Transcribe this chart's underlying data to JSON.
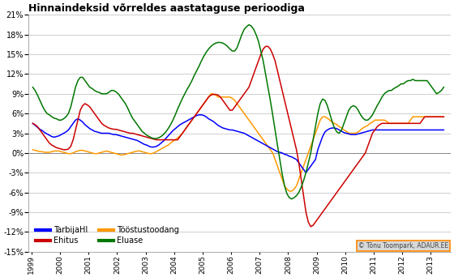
{
  "title": "Hinnaindeksid võrreldes aastataguse perioodiga",
  "ylim": [
    -15,
    21
  ],
  "yticks": [
    -15,
    -12,
    -9,
    -6,
    -3,
    0,
    3,
    6,
    9,
    12,
    15,
    18,
    21
  ],
  "legend_labels": [
    "TarbijaHI",
    "Ehitus",
    "Tööstustoodang",
    "Eluase"
  ],
  "line_colors": [
    "#0000ff",
    "#cc0000",
    "#ff9900",
    "#007700"
  ],
  "copyright_text": "© Tõnu Toompark, ADAUR.EE",
  "background_color": "#ffffff",
  "grid_color": "#bbbbbb",
  "start_year": 1999,
  "end_year": 2013,
  "cpi": [
    4.5,
    4.2,
    3.9,
    3.6,
    3.4,
    3.1,
    2.9,
    2.7,
    2.5,
    2.4,
    2.5,
    2.6,
    2.8,
    3.0,
    3.2,
    3.5,
    4.0,
    4.5,
    5.0,
    5.2,
    5.0,
    4.7,
    4.3,
    4.0,
    3.7,
    3.5,
    3.3,
    3.2,
    3.1,
    3.0,
    3.0,
    3.0,
    3.0,
    2.9,
    2.8,
    2.8,
    2.7,
    2.6,
    2.5,
    2.4,
    2.3,
    2.2,
    2.1,
    2.0,
    1.9,
    1.7,
    1.5,
    1.3,
    1.2,
    1.0,
    0.9,
    0.9,
    1.0,
    1.2,
    1.5,
    1.8,
    2.2,
    2.6,
    3.0,
    3.4,
    3.7,
    4.0,
    4.3,
    4.5,
    4.7,
    4.9,
    5.1,
    5.3,
    5.5,
    5.7,
    5.8,
    5.8,
    5.7,
    5.5,
    5.2,
    5.0,
    4.8,
    4.5,
    4.2,
    4.0,
    3.8,
    3.7,
    3.6,
    3.5,
    3.5,
    3.4,
    3.3,
    3.2,
    3.1,
    3.0,
    2.8,
    2.6,
    2.4,
    2.2,
    2.0,
    1.8,
    1.6,
    1.4,
    1.2,
    1.0,
    0.8,
    0.6,
    0.4,
    0.2,
    0.1,
    0.0,
    -0.2,
    -0.3,
    -0.5,
    -0.6,
    -0.8,
    -1.0,
    -1.5,
    -2.0,
    -2.5,
    -3.0,
    -2.5,
    -2.0,
    -1.5,
    -1.0,
    0.5,
    1.5,
    2.5,
    3.2,
    3.5,
    3.7,
    3.8,
    3.8,
    3.7,
    3.5,
    3.3,
    3.1,
    3.0,
    2.9,
    2.8,
    2.8,
    2.8,
    2.9,
    3.0,
    3.1,
    3.2,
    3.3,
    3.4,
    3.5,
    3.5,
    3.5,
    3.5,
    3.5,
    3.5,
    3.5,
    3.5,
    3.5,
    3.5,
    3.5,
    3.5,
    3.5,
    3.5,
    3.5,
    3.5,
    3.5,
    3.5,
    3.5,
    3.5,
    3.5,
    3.5,
    3.5,
    3.5,
    3.5,
    3.5,
    3.5,
    3.5,
    3.5,
    3.5,
    3.5,
    3.5,
    3.5,
    3.5,
    3.5,
    3.5
  ],
  "ehitus": [
    4.5,
    4.3,
    4.0,
    3.5,
    3.0,
    2.5,
    2.0,
    1.5,
    1.2,
    1.0,
    0.8,
    0.7,
    0.6,
    0.5,
    0.5,
    0.6,
    1.0,
    2.0,
    3.5,
    5.0,
    6.5,
    7.2,
    7.5,
    7.3,
    7.0,
    6.5,
    6.0,
    5.5,
    5.0,
    4.5,
    4.2,
    4.0,
    3.8,
    3.7,
    3.6,
    3.6,
    3.5,
    3.4,
    3.3,
    3.2,
    3.1,
    3.0,
    3.0,
    2.9,
    2.8,
    2.7,
    2.6,
    2.5,
    2.4,
    2.3,
    2.2,
    2.1,
    2.0,
    2.0,
    2.0,
    2.0,
    2.0,
    2.0,
    2.0,
    2.0,
    2.0,
    2.0,
    2.5,
    3.0,
    3.5,
    4.0,
    4.5,
    5.0,
    5.5,
    6.0,
    6.5,
    7.0,
    7.5,
    8.0,
    8.5,
    8.8,
    8.9,
    8.9,
    8.8,
    8.5,
    8.0,
    7.5,
    7.0,
    6.5,
    6.5,
    7.0,
    7.5,
    8.0,
    8.5,
    9.0,
    9.5,
    10.0,
    11.0,
    12.0,
    13.0,
    14.0,
    15.0,
    15.8,
    16.2,
    16.2,
    15.8,
    15.0,
    14.0,
    12.5,
    11.0,
    9.5,
    8.0,
    6.5,
    5.0,
    3.5,
    2.0,
    0.5,
    -1.5,
    -4.0,
    -6.5,
    -9.0,
    -10.5,
    -11.2,
    -11.0,
    -10.5,
    -10.0,
    -9.5,
    -9.0,
    -8.5,
    -8.0,
    -7.5,
    -7.0,
    -6.5,
    -6.0,
    -5.5,
    -5.0,
    -4.5,
    -4.0,
    -3.5,
    -3.0,
    -2.5,
    -2.0,
    -1.5,
    -1.0,
    -0.5,
    0.0,
    1.0,
    2.0,
    3.0,
    3.5,
    4.0,
    4.3,
    4.5,
    4.5,
    4.5,
    4.5,
    4.5,
    4.5,
    4.5,
    4.5,
    4.5,
    4.5,
    4.5,
    4.5,
    4.5,
    4.5,
    4.5,
    4.5,
    4.5,
    5.0,
    5.5,
    5.5,
    5.5,
    5.5,
    5.5,
    5.5,
    5.5,
    5.5,
    5.5,
    5.5,
    5.5,
    5.5,
    5.5,
    6.0
  ],
  "toodang": [
    0.5,
    0.4,
    0.3,
    0.2,
    0.2,
    0.1,
    0.1,
    0.1,
    0.2,
    0.3,
    0.3,
    0.3,
    0.2,
    0.1,
    0.0,
    -0.1,
    -0.1,
    0.0,
    0.2,
    0.3,
    0.4,
    0.4,
    0.3,
    0.2,
    0.1,
    0.0,
    -0.1,
    -0.1,
    0.0,
    0.1,
    0.2,
    0.3,
    0.2,
    0.1,
    0.0,
    -0.1,
    -0.2,
    -0.3,
    -0.3,
    -0.2,
    -0.1,
    0.0,
    0.1,
    0.2,
    0.3,
    0.3,
    0.2,
    0.1,
    0.0,
    -0.1,
    -0.1,
    0.0,
    0.2,
    0.4,
    0.6,
    0.8,
    1.0,
    1.2,
    1.5,
    1.8,
    2.0,
    2.3,
    2.6,
    3.0,
    3.5,
    4.0,
    4.5,
    5.0,
    5.5,
    6.0,
    6.5,
    7.0,
    7.5,
    8.0,
    8.5,
    9.0,
    9.0,
    8.8,
    8.5,
    8.5,
    8.5,
    8.5,
    8.5,
    8.5,
    8.3,
    8.0,
    7.5,
    7.0,
    6.5,
    6.0,
    5.5,
    5.0,
    4.5,
    4.0,
    3.5,
    3.0,
    2.5,
    2.0,
    1.5,
    1.0,
    0.5,
    0.0,
    -1.0,
    -2.0,
    -3.0,
    -4.0,
    -5.0,
    -5.5,
    -5.8,
    -5.8,
    -5.5,
    -5.0,
    -4.0,
    -3.0,
    -2.0,
    -1.0,
    0.0,
    1.0,
    2.0,
    3.0,
    4.0,
    5.0,
    5.5,
    5.5,
    5.3,
    5.0,
    4.7,
    4.5,
    4.3,
    4.0,
    3.8,
    3.5,
    3.3,
    3.0,
    3.0,
    3.0,
    3.0,
    3.2,
    3.5,
    3.8,
    4.0,
    4.2,
    4.5,
    4.7,
    5.0,
    5.0,
    5.0,
    5.0,
    5.0,
    4.8,
    4.5,
    4.5,
    4.5,
    4.5,
    4.5,
    4.5,
    4.5,
    4.5,
    4.5,
    5.0,
    5.5,
    5.5,
    5.5,
    5.5,
    5.5,
    5.5,
    5.5,
    5.5,
    5.5,
    5.5,
    5.5,
    5.5,
    5.5,
    5.5,
    5.5,
    5.5,
    5.5,
    5.5,
    6.0
  ],
  "eluase": [
    10.0,
    9.5,
    8.8,
    8.0,
    7.2,
    6.5,
    6.0,
    5.8,
    5.5,
    5.3,
    5.2,
    5.0,
    5.0,
    5.2,
    5.5,
    6.0,
    7.0,
    8.5,
    10.0,
    11.0,
    11.5,
    11.5,
    11.0,
    10.5,
    10.0,
    9.8,
    9.5,
    9.3,
    9.2,
    9.0,
    9.0,
    9.0,
    9.2,
    9.5,
    9.5,
    9.3,
    9.0,
    8.5,
    8.0,
    7.5,
    6.8,
    6.0,
    5.3,
    4.8,
    4.3,
    3.8,
    3.3,
    3.0,
    2.7,
    2.5,
    2.3,
    2.2,
    2.2,
    2.3,
    2.5,
    2.8,
    3.2,
    3.7,
    4.3,
    5.0,
    5.8,
    6.7,
    7.5,
    8.3,
    9.0,
    9.7,
    10.3,
    11.0,
    11.8,
    12.5,
    13.2,
    14.0,
    14.7,
    15.3,
    15.8,
    16.2,
    16.5,
    16.7,
    16.8,
    16.8,
    16.7,
    16.5,
    16.2,
    15.8,
    15.5,
    15.5,
    16.0,
    17.0,
    18.0,
    18.8,
    19.2,
    19.5,
    19.3,
    18.8,
    18.0,
    17.0,
    15.5,
    14.0,
    12.0,
    10.0,
    8.0,
    5.8,
    3.5,
    1.2,
    -1.0,
    -3.2,
    -5.0,
    -6.2,
    -6.8,
    -7.0,
    -6.8,
    -6.5,
    -6.0,
    -5.2,
    -4.2,
    -3.0,
    -1.5,
    0.0,
    2.0,
    4.0,
    6.0,
    7.5,
    8.2,
    8.0,
    7.2,
    6.0,
    4.8,
    3.8,
    3.2,
    3.0,
    3.5,
    4.5,
    5.5,
    6.5,
    7.0,
    7.2,
    7.0,
    6.5,
    5.8,
    5.3,
    5.0,
    5.0,
    5.3,
    5.8,
    6.5,
    7.2,
    7.8,
    8.5,
    9.0,
    9.3,
    9.5,
    9.5,
    9.8,
    10.0,
    10.2,
    10.5,
    10.5,
    10.8,
    11.0,
    11.0,
    11.2,
    11.0,
    11.0,
    11.0,
    11.0,
    11.0,
    11.0,
    10.5,
    10.0,
    9.5,
    9.0,
    9.2,
    9.5,
    10.0,
    10.2,
    10.5,
    10.5,
    10.5,
    10.5
  ]
}
